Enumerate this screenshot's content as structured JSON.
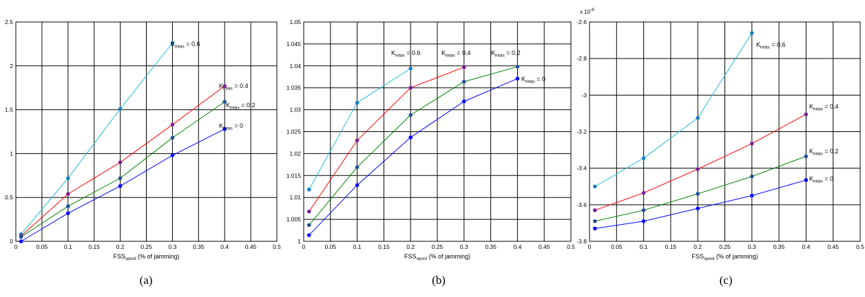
{
  "chart_data": [
    {
      "type": "line",
      "caption": "(a)",
      "xlabel": {
        "main": "FSS",
        "sub": "spool",
        "rest": " (% of jamming)"
      },
      "xlim": [
        0,
        0.5
      ],
      "ylim": [
        0,
        2.5
      ],
      "xticks": [
        0,
        0.05,
        0.1,
        0.15,
        0.2,
        0.25,
        0.3,
        0.35,
        0.4,
        0.45,
        0.5
      ],
      "xtick_labels": [
        "0",
        "0.05",
        "0.1",
        "0.15",
        "0.2",
        "0.25",
        "0.3",
        "0.35",
        "0.4",
        "0.45",
        "0.5"
      ],
      "yticks": [
        0,
        0.5,
        1,
        1.5,
        2,
        2.5
      ],
      "ytick_labels": [
        "0",
        "0.5",
        "1",
        "1.5",
        "2",
        "2.5"
      ],
      "grid": true,
      "series": [
        {
          "name": "K intas = 0.6",
          "label_main": "K",
          "label_sub": "intas",
          "label_rest": " = 0.6",
          "color": "#22bcd4",
          "marker": "#1a7fc4",
          "x": [
            0.01,
            0.1,
            0.2,
            0.3
          ],
          "y": [
            0.08,
            0.72,
            1.51,
            2.26
          ]
        },
        {
          "name": "K intas = 0.4",
          "label_main": "K",
          "label_sub": "intas",
          "label_rest": " = 0.4",
          "color": "#ff0000",
          "marker": "#7a1fa0",
          "x": [
            0.01,
            0.1,
            0.2,
            0.3,
            0.4
          ],
          "y": [
            0.06,
            0.54,
            0.9,
            1.33,
            1.77
          ]
        },
        {
          "name": "K intas = 0.2",
          "label_main": "K",
          "label_sub": "intas",
          "label_rest": " = 0.2",
          "color": "#008000",
          "marker": "#1f4f9a",
          "x": [
            0.01,
            0.1,
            0.2,
            0.3,
            0.4
          ],
          "y": [
            0.05,
            0.4,
            0.72,
            1.18,
            1.59
          ]
        },
        {
          "name": "K intas = 0",
          "label_main": "K",
          "label_sub": "intas",
          "label_rest": " = 0",
          "color": "#0000ff",
          "marker": "#0000ff",
          "x": [
            0.01,
            0.1,
            0.2,
            0.3,
            0.4
          ],
          "y": [
            0.0,
            0.32,
            0.63,
            0.98,
            1.28
          ]
        }
      ]
    },
    {
      "type": "line",
      "caption": "(b)",
      "xlabel": {
        "main": "FSS",
        "sub": "spool",
        "rest": " (% of jamming)"
      },
      "xlim": [
        0,
        0.5
      ],
      "ylim": [
        1,
        1.05
      ],
      "xticks": [
        0,
        0.05,
        0.1,
        0.15,
        0.2,
        0.25,
        0.3,
        0.35,
        0.4,
        0.45,
        0.5
      ],
      "xtick_labels": [
        "0",
        "0.05",
        "0.1",
        "0.15",
        "0.2",
        "0.25",
        "0.3",
        "0.35",
        "0.4",
        "0.45",
        "0.5"
      ],
      "yticks": [
        1,
        1.005,
        1.01,
        1.015,
        1.02,
        1.025,
        1.03,
        1.035,
        1.04,
        1.045,
        1.05
      ],
      "ytick_labels": [
        "1",
        "1.005",
        "1.01",
        "1.015",
        "1.02",
        "1.025",
        "1.03",
        "1.035",
        "1.04",
        "1.045",
        "1.05"
      ],
      "grid": true,
      "series": [
        {
          "name": "K intas = 0.6",
          "label_main": "K",
          "label_sub": "intas",
          "label_rest": " = 0.6",
          "color": "#22bcd4",
          "marker": "#1a7fc4",
          "x": [
            0.01,
            0.1,
            0.2
          ],
          "y": [
            1.0118,
            1.0316,
            1.0394
          ]
        },
        {
          "name": "K intas = 0.4",
          "label_main": "K",
          "label_sub": "intas",
          "label_rest": " = 0.4",
          "color": "#ff0000",
          "marker": "#7a1fa0",
          "x": [
            0.01,
            0.1,
            0.2,
            0.3
          ],
          "y": [
            1.0068,
            1.023,
            1.035,
            1.0397
          ]
        },
        {
          "name": "K intas = 0.2",
          "label_main": "K",
          "label_sub": "intas",
          "label_rest": " = 0.2",
          "color": "#008000",
          "marker": "#1f4f9a",
          "x": [
            0.01,
            0.1,
            0.2,
            0.3,
            0.4
          ],
          "y": [
            1.0037,
            1.0169,
            1.0288,
            1.0364,
            1.0398
          ]
        },
        {
          "name": "K intas = 0",
          "label_main": "K",
          "label_sub": "intas",
          "label_rest": " = 0",
          "color": "#0000ff",
          "marker": "#0000ff",
          "x": [
            0.01,
            0.1,
            0.2,
            0.3,
            0.4
          ],
          "y": [
            1.0014,
            1.0128,
            1.0237,
            1.0319,
            1.0371
          ]
        }
      ]
    },
    {
      "type": "line",
      "caption": "(c)",
      "xlabel": {
        "main": "FSS",
        "sub": "spool",
        "rest": " (% of jamming)"
      },
      "xlim": [
        0,
        0.5
      ],
      "ylim": [
        -3.8,
        -2.6
      ],
      "y_multiplier": {
        "base": "x 10",
        "exp": "-6"
      },
      "xticks": [
        0,
        0.05,
        0.1,
        0.15,
        0.2,
        0.25,
        0.3,
        0.35,
        0.4,
        0.45,
        0.5
      ],
      "xtick_labels": [
        "0",
        "0.05",
        "0.1",
        "0.15",
        "0.2",
        "0.25",
        "0.3",
        "0.35",
        "0.4",
        "0.45",
        "0.5"
      ],
      "yticks": [
        -3.8,
        -3.6,
        -3.4,
        -3.2,
        -3,
        -2.8,
        -2.6
      ],
      "ytick_labels": [
        "-3.8",
        "-3.6",
        "-3.4",
        "-3.2",
        "-3",
        "-2.8",
        "-2.6"
      ],
      "grid": true,
      "series": [
        {
          "name": "K intas = 0.6",
          "label_main": "K",
          "label_sub": "intas",
          "label_rest": " = 0.6",
          "color": "#22bcd4",
          "marker": "#1a7fc4",
          "x": [
            0.01,
            0.1,
            0.2,
            0.3
          ],
          "y": [
            -3.5,
            -3.345,
            -3.125,
            -2.66
          ]
        },
        {
          "name": "K intas = 0.4",
          "label_main": "K",
          "label_sub": "intas",
          "label_rest": " = 0.4",
          "color": "#ff0000",
          "marker": "#7a1fa0",
          "x": [
            0.01,
            0.1,
            0.2,
            0.3,
            0.4
          ],
          "y": [
            -3.63,
            -3.535,
            -3.405,
            -3.265,
            -3.105
          ]
        },
        {
          "name": "K intas = 0.2",
          "label_main": "K",
          "label_sub": "intas",
          "label_rest": " = 0.2",
          "color": "#008000",
          "marker": "#1f4f9a",
          "x": [
            0.01,
            0.1,
            0.2,
            0.3,
            0.4
          ],
          "y": [
            -3.69,
            -3.63,
            -3.54,
            -3.445,
            -3.335
          ]
        },
        {
          "name": "K intas = 0",
          "label_main": "K",
          "label_sub": "intas",
          "label_rest": " = 0",
          "color": "#0000ff",
          "marker": "#0000ff",
          "x": [
            0.01,
            0.1,
            0.2,
            0.3,
            0.4
          ],
          "y": [
            -3.73,
            -3.69,
            -3.62,
            -3.55,
            -3.465
          ]
        }
      ]
    }
  ]
}
